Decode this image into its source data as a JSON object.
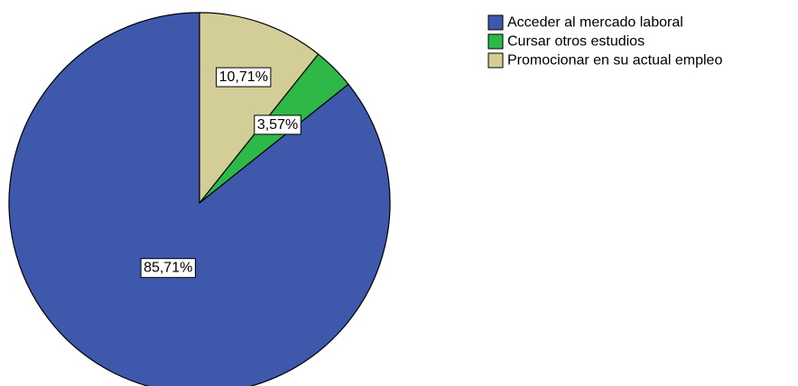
{
  "chart_data": {
    "type": "pie",
    "title": "",
    "start_angle_deg": 0,
    "direction": "counterclockwise",
    "slices": [
      {
        "label": "Acceder al mercado laboral",
        "value": 85.71,
        "value_label": "85,71%",
        "color": "#3E58AC"
      },
      {
        "label": "Cursar otros estudios",
        "value": 3.57,
        "value_label": "3,57%",
        "color": "#2EB848"
      },
      {
        "label": "Promocionar en su actual empleo",
        "value": 10.71,
        "value_label": "10,71%",
        "color": "#D3CE97"
      }
    ],
    "legend": {
      "position": "top-right",
      "entries": [
        "Acceder al mercado laboral",
        "Cursar otros estudios",
        "Promocionar en su actual empleo"
      ]
    }
  }
}
